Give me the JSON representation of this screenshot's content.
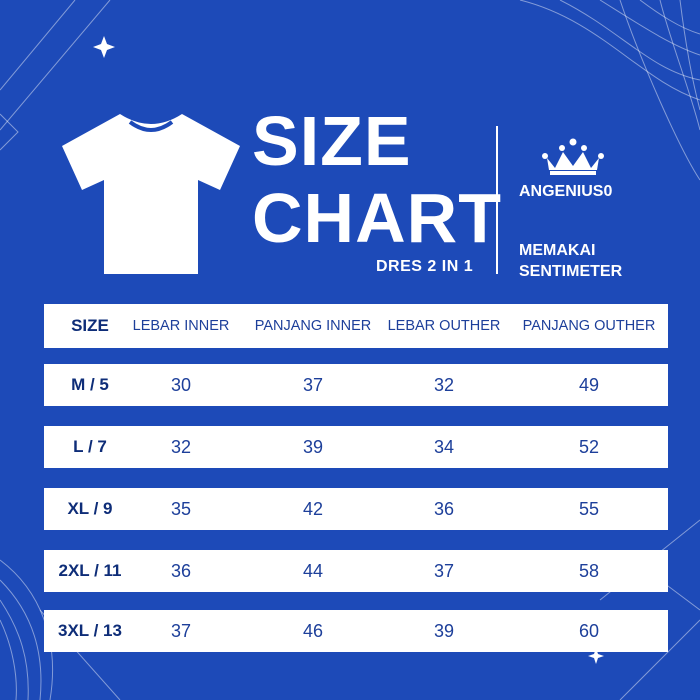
{
  "title": {
    "line1": "SIZE",
    "line2": "CHART",
    "subtitle": "DRES 2 IN 1"
  },
  "brand": {
    "name": "ANGENIUS0",
    "logo_icon": "crown-icon"
  },
  "note": "MEMAKAI SENTIMETER",
  "colors": {
    "background": "#1d4ab8",
    "text_dark": "#1d3f9a",
    "panel": "#ffffff"
  },
  "table": {
    "headers": [
      "SIZE",
      "LEBAR INNER",
      "PANJANG INNER",
      "LEBAR OUTHER",
      "PANJANG OUTHER"
    ],
    "rows": [
      [
        "M / 5",
        "30",
        "37",
        "32",
        "49"
      ],
      [
        "L / 7",
        "32",
        "39",
        "34",
        "52"
      ],
      [
        "XL / 9",
        "35",
        "42",
        "36",
        "55"
      ],
      [
        "2XL / 11",
        "36",
        "44",
        "37",
        "58"
      ],
      [
        "3XL / 13",
        "37",
        "46",
        "39",
        "60"
      ]
    ]
  }
}
